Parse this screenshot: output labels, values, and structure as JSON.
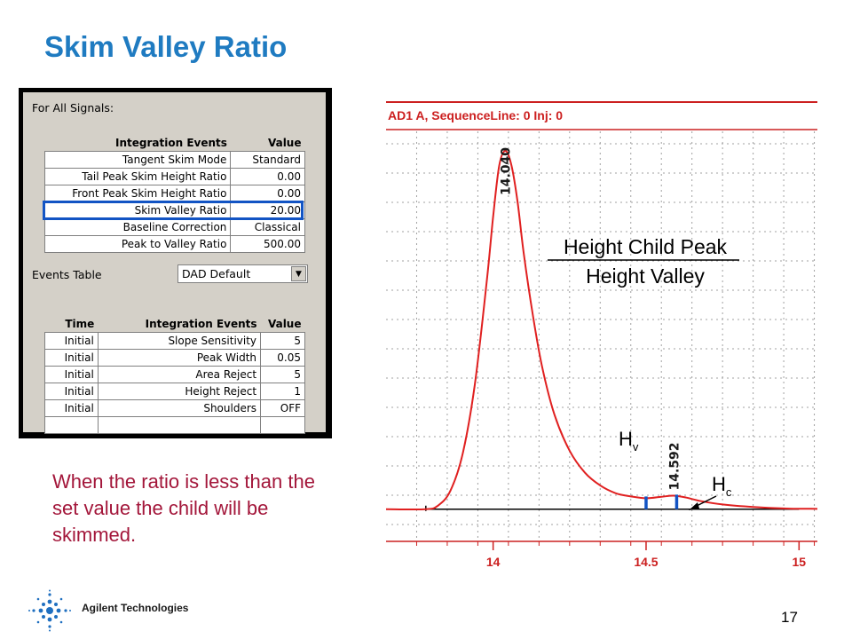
{
  "slide": {
    "title": "Skim Valley Ratio",
    "note": "When the ratio is less than the set value the child will be skimmed.",
    "page_number": "17",
    "company": "Agilent Technologies"
  },
  "dialog": {
    "section_label": "For All Signals:",
    "top_table": {
      "headers": [
        "Integration Events",
        "Value"
      ],
      "rows": [
        [
          "Tangent Skim Mode",
          "Standard"
        ],
        [
          "Tail Peak Skim Height Ratio",
          "0.00"
        ],
        [
          "Front Peak Skim Height Ratio",
          "0.00"
        ],
        [
          "Skim Valley Ratio",
          "20.00"
        ],
        [
          "Baseline Correction",
          "Classical"
        ],
        [
          "Peak to Valley Ratio",
          "500.00"
        ]
      ],
      "highlighted_row": "Skim Valley Ratio"
    },
    "events_table_label": "Events Table",
    "events_table_value": "DAD Default",
    "bottom_table": {
      "headers": [
        "Time",
        "Integration Events",
        "Value"
      ],
      "rows": [
        [
          "Initial",
          "Slope Sensitivity",
          "5"
        ],
        [
          "Initial",
          "Peak Width",
          "0.05"
        ],
        [
          "Initial",
          "Area Reject",
          "5"
        ],
        [
          "Initial",
          "Height Reject",
          "1"
        ],
        [
          "Initial",
          "Shoulders",
          "OFF"
        ],
        [
          "",
          "",
          ""
        ]
      ]
    },
    "highlight_color": "#1254c4"
  },
  "chart_data": {
    "type": "line",
    "title": "AD1 A, SequenceLine: 0  Inj: 0",
    "x_ticks": [
      "14",
      "14.5",
      "15"
    ],
    "xlim": [
      13.65,
      15.06
    ],
    "peaks": [
      {
        "rt": 14.04,
        "label": "14.040"
      },
      {
        "rt": 14.592,
        "label": "14.592"
      }
    ],
    "series": [
      {
        "color": "#e02020",
        "points": [
          [
            13.65,
            0.02
          ],
          [
            13.78,
            0.02
          ],
          [
            13.82,
            0.03
          ],
          [
            13.86,
            0.07
          ],
          [
            13.9,
            0.17
          ],
          [
            13.94,
            0.36
          ],
          [
            13.98,
            0.65
          ],
          [
            14.0,
            0.82
          ],
          [
            14.02,
            0.96
          ],
          [
            14.04,
            1.0
          ],
          [
            14.06,
            0.96
          ],
          [
            14.08,
            0.86
          ],
          [
            14.1,
            0.72
          ],
          [
            14.13,
            0.55
          ],
          [
            14.16,
            0.41
          ],
          [
            14.2,
            0.28
          ],
          [
            14.25,
            0.18
          ],
          [
            14.3,
            0.12
          ],
          [
            14.35,
            0.085
          ],
          [
            14.4,
            0.064
          ],
          [
            14.45,
            0.055
          ],
          [
            14.5,
            0.05
          ],
          [
            14.55,
            0.054
          ],
          [
            14.59,
            0.057
          ],
          [
            14.63,
            0.052
          ],
          [
            14.68,
            0.042
          ],
          [
            14.75,
            0.033
          ],
          [
            14.85,
            0.026
          ],
          [
            14.95,
            0.022
          ],
          [
            15.06,
            0.021
          ]
        ]
      }
    ],
    "baseline": {
      "x_start": 13.78,
      "x_end": 15.0,
      "y": 0.02
    },
    "markers": [
      {
        "x": 14.5,
        "y": 0.05
      },
      {
        "x": 14.6,
        "y": 0.055
      }
    ],
    "annotations": {
      "fraction_top": "Height Child Peak",
      "fraction_bottom": "Height Valley",
      "hv_main": "H",
      "hv_sub": "v",
      "hc_main": "H",
      "hc_sub": "c"
    },
    "colors": {
      "trace": "#e02020",
      "baseline": "#000000",
      "marker": "#1254c4",
      "frame": "#cc2020",
      "grid": "#a0a0a0"
    }
  }
}
